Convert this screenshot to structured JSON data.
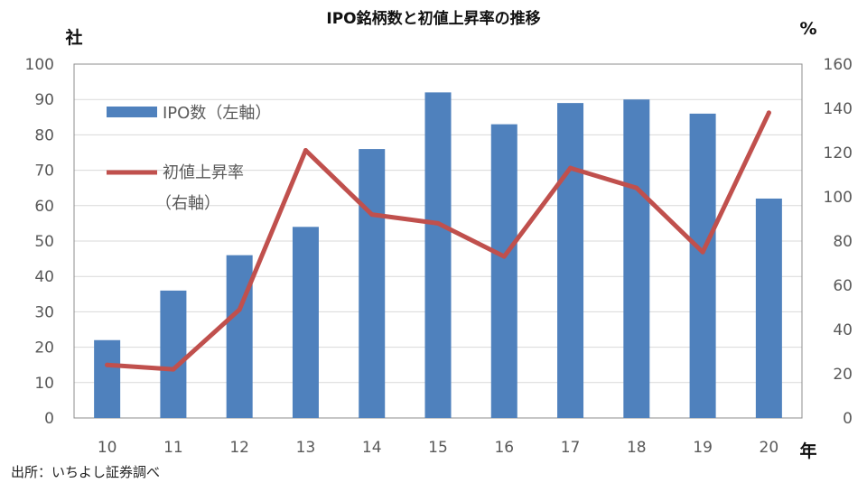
{
  "chart_data": {
    "type": "bar",
    "title": "IPO銘柄数と初値上昇率の推移",
    "categories": [
      "10",
      "11",
      "12",
      "13",
      "14",
      "15",
      "16",
      "17",
      "18",
      "19",
      "20"
    ],
    "series": [
      {
        "name": "IPO数（左軸）",
        "type": "bar",
        "axis": "left",
        "values": [
          22,
          36,
          46,
          54,
          76,
          92,
          83,
          89,
          90,
          86,
          62
        ],
        "color": "#4f81bd"
      },
      {
        "name": "初値上昇率（右軸）",
        "type": "line",
        "axis": "right",
        "values": [
          24,
          22,
          49,
          121,
          92,
          88,
          73,
          113,
          104,
          75,
          138
        ],
        "color": "#c0504d"
      }
    ],
    "y_left": {
      "unit": "社",
      "ylim": [
        0,
        100
      ],
      "ticks": [
        0,
        10,
        20,
        30,
        40,
        50,
        60,
        70,
        80,
        90,
        100
      ]
    },
    "y_right": {
      "unit": "%",
      "ylim": [
        0,
        160
      ],
      "ticks": [
        0,
        20,
        40,
        60,
        80,
        100,
        120,
        140,
        160
      ]
    },
    "xlabel": "年",
    "legend": {
      "bar_label": "IPO数（左軸）",
      "line_label_1": "初値上昇率",
      "line_label_2": "（右軸）"
    },
    "grid": true
  },
  "source": "出所：いちよし証券調べ"
}
